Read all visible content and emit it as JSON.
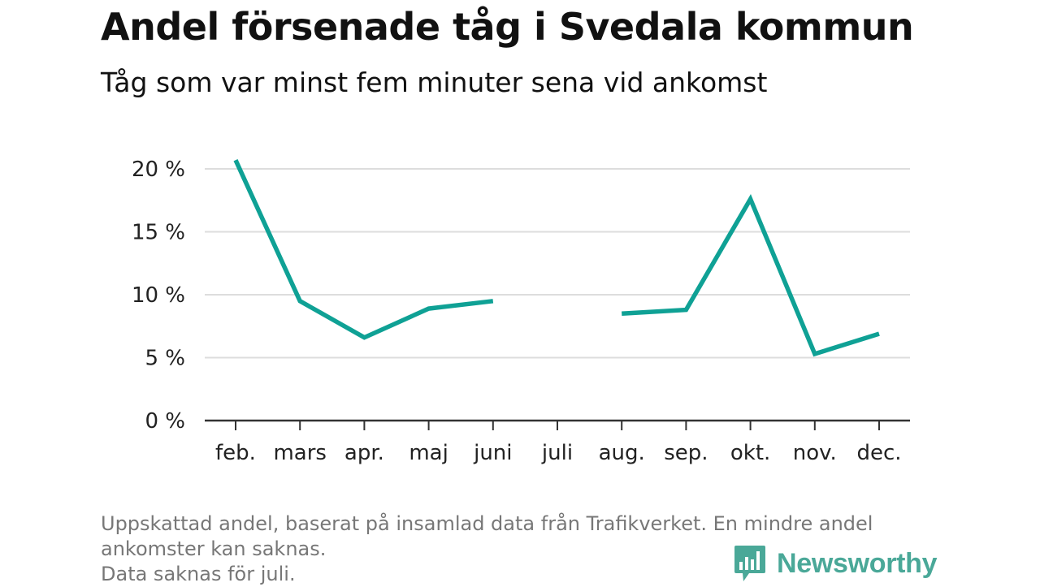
{
  "title": "Andel försenade tåg i Svedala kommun",
  "subtitle": "Tåg som var minst fem minuter sena vid ankomst",
  "footnote": {
    "line1": "Uppskattad andel, baserat på insamlad data från Trafikverket. En mindre andel",
    "line2": "ankomster kan saknas.",
    "line3": "Data saknas för juli."
  },
  "logo": {
    "text": "Newsworthy",
    "icon": "newsworthy-bar-chart-icon"
  },
  "colors": {
    "line": "#0fa195",
    "grid": "#dddddd",
    "axis": "#333333",
    "logo": "#4aa898"
  },
  "chart_data": {
    "type": "line",
    "categories": [
      "feb.",
      "mars",
      "apr.",
      "maj",
      "juni",
      "juli",
      "aug.",
      "sep.",
      "okt.",
      "nov.",
      "dec."
    ],
    "series": [
      {
        "values": [
          20.7,
          9.5,
          6.6,
          8.9,
          9.5,
          null,
          8.5,
          8.8,
          17.6,
          5.3,
          6.9
        ]
      }
    ],
    "yticks": [
      "0 %",
      "5 %",
      "10 %",
      "15 %",
      "20 %"
    ],
    "ytick_values": [
      0,
      5,
      10,
      15,
      20
    ],
    "ylim": [
      0,
      20.7
    ],
    "xlabel": "",
    "ylabel": "",
    "grid": true,
    "legend": "none"
  }
}
